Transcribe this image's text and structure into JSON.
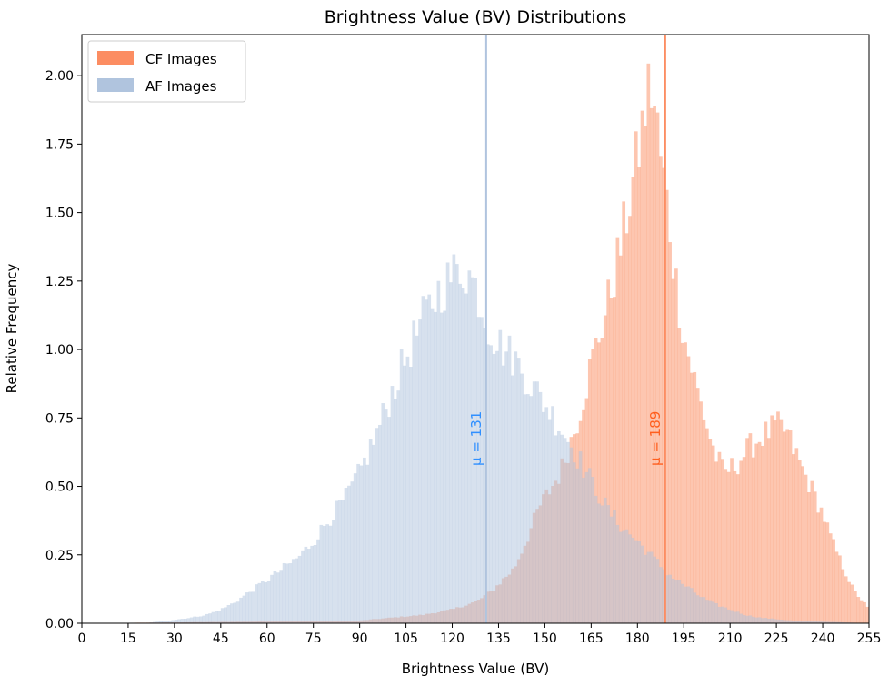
{
  "chart_data": {
    "type": "bar",
    "title": "Brightness Value (BV) Distributions",
    "xlabel": "Brightness Value (BV)",
    "ylabel": "Relative Frequency",
    "xlim": [
      0,
      255
    ],
    "ylim": [
      0,
      2.15
    ],
    "xticks": [
      0,
      15,
      30,
      45,
      60,
      75,
      90,
      105,
      120,
      135,
      150,
      165,
      180,
      195,
      210,
      225,
      240,
      255
    ],
    "yticks": [
      0.0,
      0.25,
      0.5,
      0.75,
      1.0,
      1.25,
      1.5,
      1.75,
      2.0
    ],
    "ytick_labels": [
      "0.00",
      "0.25",
      "0.50",
      "0.75",
      "1.00",
      "1.25",
      "1.50",
      "1.75",
      "2.00"
    ],
    "legend_position": "top-left",
    "bins": "1 BV wide, 0–255",
    "series": [
      {
        "name": "CF Images",
        "color": "#FC8D62",
        "alpha": 0.5,
        "mean": 189,
        "mean_label": "μ = 189",
        "mean_label_color": "#FF5F1F",
        "profile_points": [
          [
            0,
            0
          ],
          [
            90,
            0.01
          ],
          [
            110,
            0.03
          ],
          [
            120,
            0.05
          ],
          [
            128,
            0.08
          ],
          [
            133,
            0.12
          ],
          [
            140,
            0.2
          ],
          [
            145,
            0.33
          ],
          [
            148,
            0.42
          ],
          [
            155,
            0.55
          ],
          [
            160,
            0.72
          ],
          [
            163,
            0.85
          ],
          [
            165,
            0.95
          ],
          [
            170,
            1.15
          ],
          [
            175,
            1.4
          ],
          [
            180,
            1.7
          ],
          [
            184,
            1.98
          ],
          [
            186,
            1.85
          ],
          [
            188,
            1.65
          ],
          [
            190,
            1.5
          ],
          [
            192,
            1.28
          ],
          [
            195,
            1.05
          ],
          [
            200,
            0.82
          ],
          [
            205,
            0.62
          ],
          [
            208,
            0.55
          ],
          [
            212,
            0.58
          ],
          [
            216,
            0.64
          ],
          [
            220,
            0.68
          ],
          [
            225,
            0.72
          ],
          [
            228,
            0.7
          ],
          [
            232,
            0.6
          ],
          [
            236,
            0.5
          ],
          [
            240,
            0.4
          ],
          [
            243,
            0.3
          ],
          [
            246,
            0.22
          ],
          [
            250,
            0.12
          ],
          [
            253,
            0.08
          ],
          [
            255,
            0.05
          ]
        ]
      },
      {
        "name": "AF Images",
        "color": "#B0C4DE",
        "alpha": 0.5,
        "mean": 131,
        "mean_label": "μ = 131",
        "mean_label_color": "#2F8FFF",
        "profile_points": [
          [
            0,
            0
          ],
          [
            20,
            0.0
          ],
          [
            28,
            0.01
          ],
          [
            35,
            0.02
          ],
          [
            40,
            0.03
          ],
          [
            45,
            0.05
          ],
          [
            50,
            0.08
          ],
          [
            55,
            0.12
          ],
          [
            60,
            0.16
          ],
          [
            65,
            0.2
          ],
          [
            70,
            0.24
          ],
          [
            75,
            0.3
          ],
          [
            80,
            0.38
          ],
          [
            85,
            0.45
          ],
          [
            90,
            0.55
          ],
          [
            95,
            0.68
          ],
          [
            100,
            0.83
          ],
          [
            105,
            0.97
          ],
          [
            110,
            1.1
          ],
          [
            115,
            1.2
          ],
          [
            120,
            1.27
          ],
          [
            124,
            1.3
          ],
          [
            128,
            1.22
          ],
          [
            131,
            1.1
          ],
          [
            135,
            1.02
          ],
          [
            140,
            0.97
          ],
          [
            145,
            0.88
          ],
          [
            150,
            0.8
          ],
          [
            155,
            0.72
          ],
          [
            160,
            0.62
          ],
          [
            165,
            0.52
          ],
          [
            170,
            0.42
          ],
          [
            175,
            0.35
          ],
          [
            180,
            0.3
          ],
          [
            185,
            0.24
          ],
          [
            190,
            0.18
          ],
          [
            195,
            0.14
          ],
          [
            200,
            0.1
          ],
          [
            205,
            0.07
          ],
          [
            210,
            0.05
          ],
          [
            215,
            0.03
          ],
          [
            220,
            0.02
          ],
          [
            230,
            0.01
          ],
          [
            255,
            0.0
          ]
        ]
      }
    ]
  }
}
